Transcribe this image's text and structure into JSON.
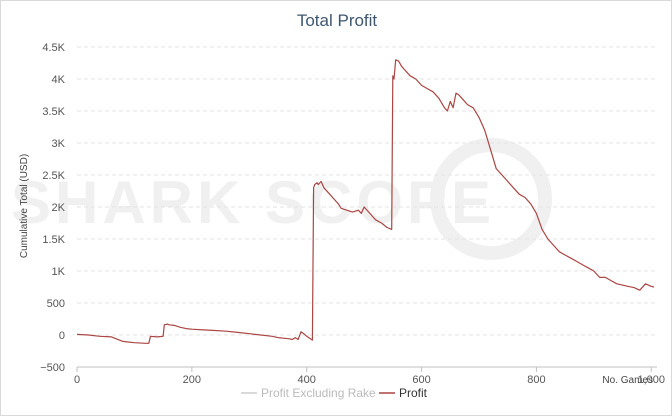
{
  "chart_data": {
    "type": "line",
    "title": "Total Profit",
    "ylabel": "Cumulative Total (USD)",
    "xlabel": "No. Games",
    "xlim": [
      0,
      1010
    ],
    "ylim": [
      -500,
      4500
    ],
    "x_ticks": [
      0,
      200,
      400,
      600,
      800,
      1000
    ],
    "x_tick_labels": [
      "0",
      "200",
      "400",
      "600",
      "800",
      "1,000"
    ],
    "y_ticks": [
      -500,
      0,
      500,
      1000,
      1500,
      2000,
      2500,
      3000,
      3500,
      4000,
      4500
    ],
    "y_tick_labels": [
      "−500",
      "0",
      "500",
      "1K",
      "1.5K",
      "2K",
      "2.5K",
      "3K",
      "3.5K",
      "4K",
      "4.5K"
    ],
    "grid": true,
    "legend_position": "bottom-center",
    "watermark": "SHARK SCOPE",
    "series": [
      {
        "name": "Profit Excluding Rake",
        "color": "#cccccc",
        "x": [],
        "y": []
      },
      {
        "name": "Profit",
        "color": "#aa4643",
        "x": [
          0,
          20,
          40,
          60,
          80,
          100,
          120,
          125,
          128,
          140,
          150,
          152,
          158,
          160,
          170,
          180,
          190,
          200,
          220,
          240,
          260,
          280,
          300,
          320,
          340,
          350,
          360,
          370,
          375,
          380,
          385,
          390,
          395,
          400,
          405,
          410,
          412,
          414,
          418,
          420,
          425,
          430,
          440,
          450,
          455,
          460,
          470,
          480,
          490,
          495,
          500,
          510,
          515,
          520,
          530,
          540,
          548,
          550,
          552,
          555,
          560,
          565,
          570,
          580,
          590,
          600,
          610,
          620,
          630,
          640,
          645,
          650,
          655,
          660,
          665,
          670,
          680,
          690,
          700,
          710,
          720,
          730,
          740,
          750,
          760,
          770,
          780,
          790,
          800,
          810,
          820,
          830,
          840,
          850,
          860,
          870,
          880,
          890,
          900,
          910,
          920,
          930,
          940,
          950,
          960,
          970,
          980,
          990,
          995,
          1000,
          1005
        ],
        "y": [
          10,
          0,
          -20,
          -30,
          -100,
          -120,
          -130,
          -130,
          -20,
          -30,
          -20,
          160,
          170,
          160,
          150,
          120,
          100,
          90,
          80,
          70,
          60,
          40,
          20,
          0,
          -20,
          -40,
          -50,
          -60,
          -70,
          -40,
          -70,
          50,
          20,
          -20,
          -50,
          -80,
          2300,
          2350,
          2380,
          2350,
          2400,
          2300,
          2200,
          2100,
          2050,
          1980,
          1950,
          1920,
          1950,
          1900,
          2000,
          1900,
          1850,
          1800,
          1750,
          1680,
          1650,
          4050,
          4000,
          4300,
          4280,
          4200,
          4150,
          4050,
          4000,
          3900,
          3850,
          3800,
          3700,
          3550,
          3500,
          3650,
          3550,
          3780,
          3750,
          3700,
          3600,
          3550,
          3400,
          3200,
          2900,
          2600,
          2500,
          2400,
          2300,
          2200,
          2150,
          2050,
          1900,
          1650,
          1500,
          1400,
          1300,
          1250,
          1200,
          1150,
          1100,
          1050,
          1000,
          900,
          900,
          850,
          800,
          780,
          760,
          740,
          700,
          800,
          780,
          760,
          750
        ]
      }
    ]
  }
}
